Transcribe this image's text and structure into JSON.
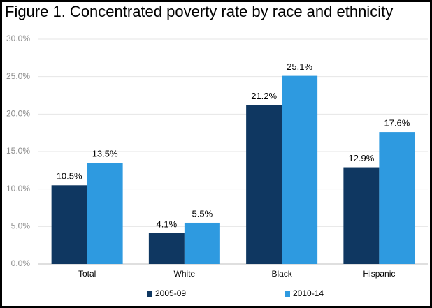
{
  "chart_data": {
    "type": "bar",
    "title": "Figure 1. Concentrated poverty rate by race and ethnicity",
    "categories": [
      "Total",
      "White",
      "Black",
      "Hispanic"
    ],
    "series": [
      {
        "name": "2005-09",
        "color": "#0f3761",
        "values": [
          10.5,
          4.1,
          21.2,
          12.9
        ],
        "value_labels": [
          "10.5%",
          "4.1%",
          "21.2%",
          "12.9%"
        ]
      },
      {
        "name": "2010-14",
        "color": "#2e9ae0",
        "values": [
          13.5,
          5.5,
          25.1,
          17.6
        ],
        "value_labels": [
          "13.5%",
          "5.5%",
          "25.1%",
          "17.6%"
        ]
      }
    ],
    "ylim": [
      0,
      30
    ],
    "yticks": [
      {
        "value": 0,
        "label": "0.0%"
      },
      {
        "value": 5,
        "label": "5.0%"
      },
      {
        "value": 10,
        "label": "10.0%"
      },
      {
        "value": 15,
        "label": "15.0%"
      },
      {
        "value": 20,
        "label": "20.0%"
      },
      {
        "value": 25,
        "label": "25.0%"
      },
      {
        "value": 30,
        "label": "30.0%"
      }
    ],
    "grid": true,
    "legend": "bottom"
  }
}
